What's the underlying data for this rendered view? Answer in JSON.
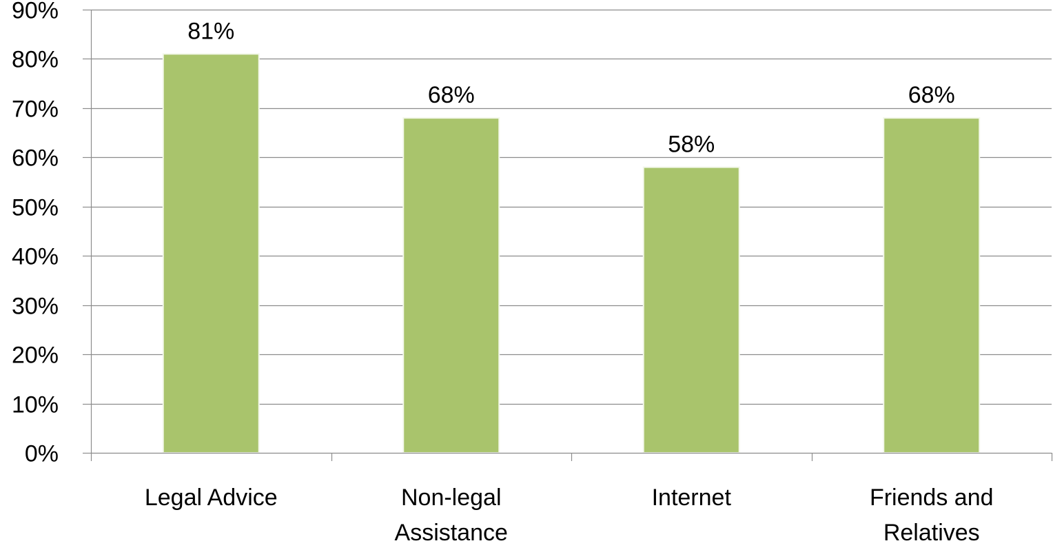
{
  "chart_data": {
    "type": "bar",
    "categories": [
      [
        "Legal Advice"
      ],
      [
        "Non-legal",
        "Assistance"
      ],
      [
        "Internet"
      ],
      [
        "Friends and",
        "Relatives"
      ]
    ],
    "series": [
      {
        "values": [
          81,
          68,
          58,
          68
        ],
        "data_labels": [
          "81%",
          "68%",
          "58%",
          "68%"
        ],
        "color": "#A9C46C",
        "edge_color": "#F3F7EA"
      }
    ],
    "ylim": [
      0,
      90
    ],
    "yticks": [
      0,
      10,
      20,
      30,
      40,
      50,
      60,
      70,
      80,
      90
    ],
    "ytick_labels": [
      "0%",
      "10%",
      "20%",
      "30%",
      "40%",
      "50%",
      "60%",
      "70%",
      "80%",
      "90%"
    ],
    "grid": true,
    "grid_color": "#8C8C8C",
    "axis_color": "#8C8C8C",
    "title": "",
    "xlabel": "",
    "ylabel": "",
    "legend": "none"
  }
}
